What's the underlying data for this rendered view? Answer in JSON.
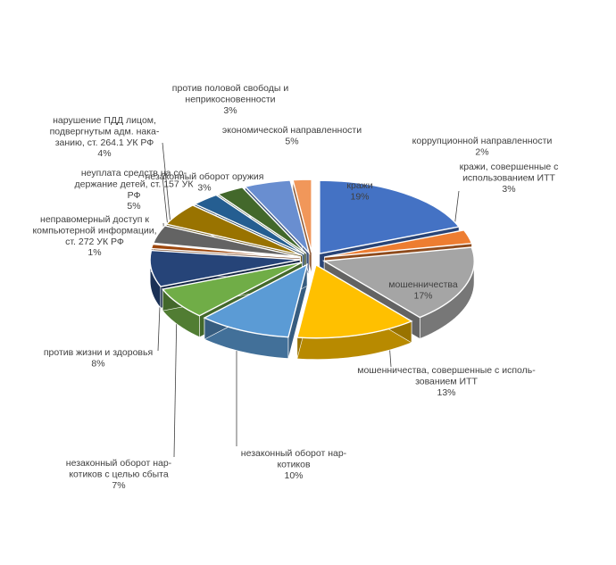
{
  "chart_data": {
    "type": "pie",
    "style": "3d-exploded",
    "title": "",
    "legend": "none",
    "slices": [
      {
        "name": "кражи",
        "value": 19,
        "label": "19%",
        "color": "#4472C4",
        "label_lines": [
          "кражи",
          "19%"
        ]
      },
      {
        "name": "кражи, совершенные с использованием ИТТ",
        "value": 3,
        "label": "3%",
        "color": "#ED7D31",
        "label_lines": [
          "кражи, совершенные с",
          "использованием ИТТ",
          "3%"
        ]
      },
      {
        "name": "мошенничества",
        "value": 17,
        "label": "17%",
        "color": "#A5A5A5",
        "label_lines": [
          "мошенничества",
          "17%"
        ]
      },
      {
        "name": "мошенничества, совершенные с использованием ИТТ",
        "value": 13,
        "label": "13%",
        "color": "#FFC000",
        "label_lines": [
          "мошенничества, совершенные с исполь-",
          "зованием ИТТ",
          "13%"
        ]
      },
      {
        "name": "незаконный оборот наркотиков",
        "value": 10,
        "label": "10%",
        "color": "#5B9BD5",
        "label_lines": [
          "незаконный оборот нар-",
          "котиков",
          "10%"
        ]
      },
      {
        "name": "незаконный оборот наркотиков с целью сбыта",
        "value": 7,
        "label": "7%",
        "color": "#70AD47",
        "label_lines": [
          "незаконный оборот нар-",
          "котиков с целью сбыта",
          "7%"
        ]
      },
      {
        "name": "против жизни и здоровья",
        "value": 8,
        "label": "8%",
        "color": "#264478",
        "label_lines": [
          "против жизни и здоровья",
          "8%"
        ]
      },
      {
        "name": "неправомерный доступ к компьютерной информации, ст. 272 УК РФ",
        "value": 1,
        "label": "1%",
        "color": "#9E480E",
        "label_lines": [
          "неправомерный доступ к",
          "компьютерной информации,",
          "ст. 272 УК РФ",
          "1%"
        ]
      },
      {
        "name": "нарушение ПДД лицом, подвергнутым адм. наказанию, ст. 264.1 УК РФ",
        "value": 4,
        "label": "4%",
        "color": "#636363",
        "label_lines": [
          "нарушение ПДД лицом,",
          "подвергнутым адм. нака-",
          "занию, ст. 264.1 УК РФ",
          "4%"
        ]
      },
      {
        "name": "неуплата средств на содержание детей, ст. 157 УК РФ",
        "value": 5,
        "label": "5%",
        "color": "#997300",
        "label_lines": [
          "неуплата средств на со-",
          "держание детей, ст. 157 УК",
          "РФ",
          "5%"
        ]
      },
      {
        "name": "незаконный оборот оружия",
        "value": 3,
        "label": "3%",
        "color": "#255E91",
        "label_lines": [
          "незаконный оборот оружия",
          "3%"
        ]
      },
      {
        "name": "против половой свободы и неприкосновенности",
        "value": 3,
        "label": "3%",
        "color": "#43682B",
        "label_lines": [
          "против половой свободы и",
          "неприкосновенности",
          "3%"
        ]
      },
      {
        "name": "экономической направленности",
        "value": 5,
        "label": "5%",
        "color": "#698ED0",
        "label_lines": [
          "экономической направленности",
          "5%"
        ]
      },
      {
        "name": "коррупционной направленности",
        "value": 2,
        "label": "2%",
        "color": "#F1975A",
        "label_lines": [
          "коррупционной направленности",
          "2%"
        ]
      }
    ]
  }
}
